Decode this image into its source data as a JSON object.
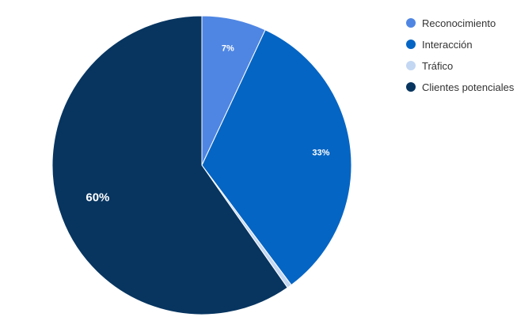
{
  "chart_data": {
    "type": "pie",
    "title": "",
    "legend_position": "top-right",
    "categories": [
      "Reconocimiento",
      "Interacción",
      "Tráfico",
      "Clientes potenciales"
    ],
    "values": [
      7,
      33,
      0.5,
      60
    ],
    "labels": [
      "7%",
      "33%",
      "",
      "60%"
    ],
    "colors": [
      "#4f86e3",
      "#0565c4",
      "#c3d7f3",
      "#073560"
    ]
  }
}
